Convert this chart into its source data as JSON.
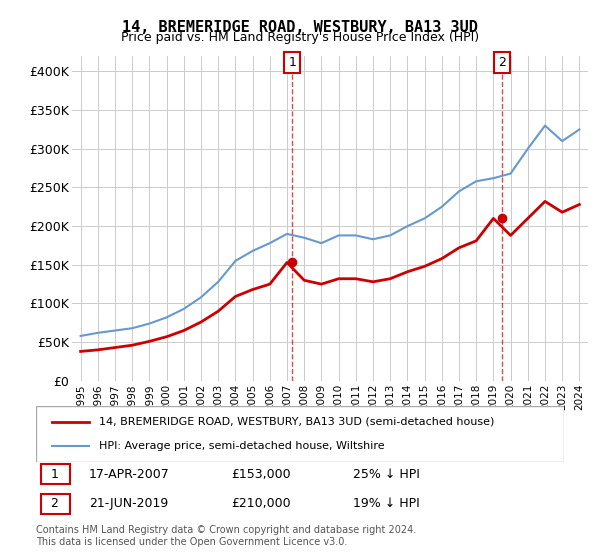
{
  "title": "14, BREMERIDGE ROAD, WESTBURY, BA13 3UD",
  "subtitle": "Price paid vs. HM Land Registry's House Price Index (HPI)",
  "legend_line1": "14, BREMERIDGE ROAD, WESTBURY, BA13 3UD (semi-detached house)",
  "legend_line2": "HPI: Average price, semi-detached house, Wiltshire",
  "footnote": "Contains HM Land Registry data © Crown copyright and database right 2024.\nThis data is licensed under the Open Government Licence v3.0.",
  "marker1_label": "1",
  "marker1_date": "17-APR-2007",
  "marker1_price": "£153,000",
  "marker1_hpi": "25% ↓ HPI",
  "marker2_label": "2",
  "marker2_date": "21-JUN-2019",
  "marker2_price": "£210,000",
  "marker2_hpi": "19% ↓ HPI",
  "hpi_color": "#6699cc",
  "price_color": "#cc0000",
  "marker_color": "#cc0000",
  "ylim": [
    0,
    420000
  ],
  "yticks": [
    0,
    50000,
    100000,
    150000,
    200000,
    250000,
    300000,
    350000,
    400000
  ],
  "ytick_labels": [
    "£0",
    "£50K",
    "£100K",
    "£150K",
    "£200K",
    "£250K",
    "£300K",
    "£350K",
    "£400K"
  ],
  "hpi_years": [
    1995,
    1996,
    1997,
    1998,
    1999,
    2000,
    2001,
    2002,
    2003,
    2004,
    2005,
    2006,
    2007,
    2008,
    2009,
    2010,
    2011,
    2012,
    2013,
    2014,
    2015,
    2016,
    2017,
    2018,
    2019,
    2020,
    2021,
    2022,
    2023,
    2024
  ],
  "hpi_values": [
    58000,
    62000,
    65000,
    68000,
    74000,
    82000,
    93000,
    108000,
    128000,
    155000,
    168000,
    178000,
    190000,
    185000,
    178000,
    188000,
    188000,
    183000,
    188000,
    200000,
    210000,
    225000,
    245000,
    258000,
    262000,
    268000,
    300000,
    330000,
    310000,
    325000
  ],
  "price_years": [
    1995,
    1996,
    1997,
    1998,
    1999,
    2000,
    2001,
    2002,
    2003,
    2004,
    2005,
    2006,
    2007,
    2008,
    2009,
    2010,
    2011,
    2012,
    2013,
    2014,
    2015,
    2016,
    2017,
    2018,
    2019,
    2020,
    2021,
    2022,
    2023,
    2024
  ],
  "price_values": [
    38000,
    40000,
    43000,
    46000,
    51000,
    57000,
    65000,
    76000,
    90000,
    109000,
    118000,
    125000,
    153000,
    130000,
    125000,
    132000,
    132000,
    128000,
    132000,
    141000,
    148000,
    158000,
    172000,
    181000,
    210000,
    188000,
    210000,
    232000,
    218000,
    228000
  ],
  "marker1_x": 2007.3,
  "marker1_y": 153000,
  "marker2_x": 2019.5,
  "marker2_y": 210000,
  "xtick_years": [
    1995,
    1996,
    1997,
    1998,
    1999,
    2000,
    2001,
    2002,
    2003,
    2004,
    2005,
    2006,
    2007,
    2008,
    2009,
    2010,
    2011,
    2012,
    2013,
    2014,
    2015,
    2016,
    2017,
    2018,
    2019,
    2020,
    2021,
    2022,
    2023,
    2024
  ]
}
